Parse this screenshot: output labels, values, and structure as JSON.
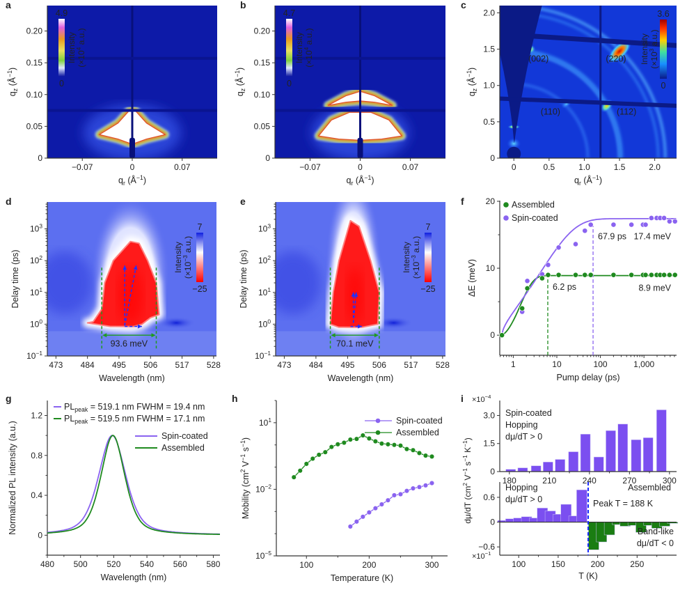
{
  "chart_data": [
    {
      "panel": "a",
      "type": "heatmap",
      "xlabel": "q_{r} (Å^{−1})",
      "ylabel": "q_{z} (Å^{−1})",
      "xlim": [
        -0.119,
        0.119
      ],
      "ylim": [
        0,
        0.24
      ],
      "xticks": [
        -0.07,
        0,
        0.07
      ],
      "xtick_labels": [
        "−0.07",
        "0",
        "0.07"
      ],
      "yticks": [
        0,
        0.05,
        0.1,
        0.15,
        0.2
      ],
      "ytick_labels": [
        "0",
        "0.05",
        "0.10",
        "0.15",
        "0.20"
      ],
      "colorbar": {
        "max": "4.9",
        "min": "0",
        "label1": "Intensity",
        "label2": "(×10^{4} a.u.)",
        "scale": "white-magenta-orange-yellow-green-blue"
      }
    },
    {
      "panel": "b",
      "type": "heatmap",
      "xlabel": "q_{r} (Å^{−1})",
      "ylabel": "q_{z} (Å^{−1})",
      "xlim": [
        -0.119,
        0.119
      ],
      "ylim": [
        0,
        0.24
      ],
      "xticks": [
        -0.07,
        0,
        0.07
      ],
      "xtick_labels": [
        "−0.07",
        "0",
        "0.07"
      ],
      "yticks": [
        0,
        0.05,
        0.1,
        0.15,
        0.2
      ],
      "ytick_labels": [
        "0",
        "0.05",
        "0.10",
        "0.15",
        "0.20"
      ],
      "colorbar": {
        "max": "4.7",
        "min": "0",
        "label1": "Intensity",
        "label2": "(×10^{4} a.u.)",
        "scale": "white-magenta-orange-yellow-green-blue"
      }
    },
    {
      "panel": "c",
      "type": "heatmap",
      "xlabel": "q_{r} (Å^{−1})",
      "ylabel": "q_{z} (Å^{−1})",
      "xlim": [
        -0.2,
        2.31
      ],
      "ylim": [
        0,
        2.1
      ],
      "xticks": [
        0,
        0.5,
        1.0,
        1.5,
        2.0
      ],
      "xtick_labels": [
        "0",
        "0.5",
        "1.0",
        "1.5",
        "2.0"
      ],
      "yticks": [
        0,
        0.5,
        1.0,
        1.5,
        2.0
      ],
      "ytick_labels": [
        "0",
        "0.5",
        "1.0",
        "1.5",
        "2.0"
      ],
      "colorbar": {
        "max": "3.6",
        "min": "0",
        "label1": "Intensity",
        "label2": "(×10^{3} a.u.)",
        "scale": "jet"
      },
      "annotations": [
        {
          "text": "(002)",
          "at": [
            0.35,
            1.33
          ]
        },
        {
          "text": "(220)",
          "at": [
            1.45,
            1.33
          ]
        },
        {
          "text": "(110)",
          "at": [
            0.52,
            0.6
          ]
        },
        {
          "text": "(112)",
          "at": [
            1.6,
            0.6
          ]
        }
      ]
    },
    {
      "panel": "d",
      "type": "heatmap",
      "xlabel": "Wavelength (nm)",
      "ylabel": "Delay time (ps)",
      "xlim": [
        470,
        529
      ],
      "ylim": [
        0.1,
        7000
      ],
      "yscale": "log",
      "xticks": [
        473,
        484,
        495,
        506,
        517,
        528
      ],
      "yticks": [
        0.1,
        1,
        10,
        100,
        1000
      ],
      "ytick_labels": [
        "10^{−1}",
        "10^{0}",
        "10^{1}",
        "10^{2}",
        "10^{3}"
      ],
      "colorbar": {
        "max": "7",
        "min": "−25",
        "label1": "Intensity",
        "label2": "(×10^{−3} a.u.)",
        "scale": "blue-white-red"
      },
      "bracket": {
        "from_nm": 489,
        "to_nm": 508,
        "label": "93.6 meV"
      }
    },
    {
      "panel": "e",
      "type": "heatmap",
      "xlabel": "Wavelength (nm)",
      "ylabel": "Delay time (ps)",
      "xlim": [
        470,
        529
      ],
      "ylim": [
        0.1,
        7000
      ],
      "yscale": "log",
      "xticks": [
        473,
        484,
        495,
        506,
        517,
        528
      ],
      "yticks": [
        0.1,
        1,
        10,
        100,
        1000
      ],
      "ytick_labels": [
        "10^{−1}",
        "10^{0}",
        "10^{1}",
        "10^{2}",
        "10^{3}"
      ],
      "colorbar": {
        "max": "7",
        "min": "−25",
        "label1": "Intensity",
        "label2": "(×10^{−3} a.u.)",
        "scale": "blue-white-red"
      },
      "bracket": {
        "from_nm": 489,
        "to_nm": 506,
        "label": "70.1 meV"
      }
    },
    {
      "panel": "f",
      "type": "scatter",
      "xlabel": "Pump delay (ps)",
      "ylabel": "ΔE (meV)",
      "xscale": "log",
      "xlim": [
        0.49,
        5600
      ],
      "ylim": [
        -3,
        20.1
      ],
      "xticks": [
        1,
        10,
        100,
        1000
      ],
      "xtick_labels": [
        "1",
        "10",
        "100",
        "1,000"
      ],
      "yticks": [
        0,
        10,
        20
      ],
      "ytick_labels": [
        "0",
        "10",
        "20"
      ],
      "series": [
        {
          "name": "Assembled",
          "color": "#1f8a1f",
          "x": [
            0.55,
            1.6,
            2.1,
            4.6,
            6.3,
            11,
            27,
            44,
            60,
            200,
            515,
            950,
            1090,
            1480,
            1960,
            2350,
            2900,
            3860,
            5150
          ],
          "y": [
            0,
            4.0,
            7.0,
            8.5,
            9.0,
            9.0,
            9.0,
            9.0,
            9.0,
            9.0,
            9.0,
            9.0,
            9.0,
            9.0,
            9.0,
            9.0,
            9.0,
            9.0,
            9.0
          ],
          "fit": {
            "plateau": 8.9,
            "tau": 1.2,
            "beta": 1.3
          },
          "marker_line": {
            "x": 6.2,
            "label": "6.2 ps"
          },
          "plateau_label": "8.9 meV"
        },
        {
          "name": "Spin-coated",
          "color": "#8a63f0",
          "x": [
            0.55,
            1.6,
            2.1,
            4.6,
            6.3,
            11,
            27,
            44,
            60,
            200,
            515,
            950,
            1090,
            1480,
            1960,
            2350,
            2900,
            3860,
            5150
          ],
          "y": [
            0,
            3.5,
            8.1,
            9.1,
            10.5,
            13.1,
            13.6,
            15.6,
            16.5,
            16.5,
            16.5,
            16.5,
            16.5,
            17.5,
            17.5,
            17.5,
            17.5,
            17.0,
            17.0
          ],
          "fit": {
            "plateau": 17.4,
            "tau": 5.6,
            "beta": 0.6
          },
          "marker_line": {
            "x": 67.9,
            "label": "67.9 ps"
          },
          "plateau_label": "17.4 meV"
        }
      ],
      "legend": "top-left"
    },
    {
      "panel": "g",
      "type": "line",
      "xlabel": "Wavelength (nm)",
      "ylabel": "Normalized PL intensity (a.u.)",
      "xlim": [
        480,
        584
      ],
      "ylim": [
        -0.2,
        1.35
      ],
      "xticks": [
        480,
        500,
        520,
        540,
        560,
        580
      ],
      "yticks": [
        0,
        0.4,
        0.8,
        1.2
      ],
      "ytick_labels": [
        "0",
        "0.4",
        "0.8",
        "1.2"
      ],
      "series": [
        {
          "name": "Spin-coated",
          "color": "#8a63f0",
          "peak_nm": 519.1,
          "fwhm_nm": 19.4,
          "annotation": "PL_{peak} = 519.1 nm FWHM = 19.4 nm"
        },
        {
          "name": "Assembled",
          "color": "#1f8a1f",
          "peak_nm": 519.5,
          "fwhm_nm": 17.1,
          "annotation": "PL_{peak} = 519.5 nm FWHM = 17.1 nm"
        }
      ],
      "legend": "right"
    },
    {
      "panel": "h",
      "type": "line",
      "xlabel": "Temperature (K)",
      "ylabel": "Mobility (cm^{2} V^{−1} s^{−1})",
      "yscale": "log",
      "xlim": [
        52,
        325
      ],
      "ylim": [
        1e-05,
        100
      ],
      "xticks": [
        100,
        200,
        300
      ],
      "yticks": [
        1e-05,
        0.01,
        10
      ],
      "ytick_labels": [
        "10^{−5}",
        "10^{−2}",
        "10^{1}"
      ],
      "series": [
        {
          "name": "Spin-coated",
          "color": "#8a63f0",
          "x": [
            170,
            180,
            190,
            200,
            210,
            220,
            230,
            240,
            250,
            260,
            270,
            280,
            290,
            300
          ],
          "y": [
            0.00021,
            0.00035,
            0.00058,
            0.00091,
            0.0014,
            0.0021,
            0.0032,
            0.0054,
            0.006,
            0.0085,
            0.011,
            0.0126,
            0.015,
            0.019
          ]
        },
        {
          "name": "Assembled",
          "color": "#1f8a1f",
          "x": [
            80,
            90,
            100,
            110,
            120,
            130,
            140,
            150,
            160,
            170,
            180,
            190,
            200,
            210,
            220,
            230,
            240,
            250,
            260,
            270,
            280,
            290,
            300
          ],
          "y": [
            0.035,
            0.069,
            0.14,
            0.24,
            0.36,
            0.47,
            0.81,
            1.07,
            1.26,
            1.74,
            1.86,
            2.69,
            1.95,
            1.45,
            1.15,
            1.07,
            1.0,
            0.93,
            0.65,
            0.58,
            0.43,
            0.33,
            0.3
          ]
        }
      ],
      "legend": "top-right"
    },
    {
      "panel": "i",
      "type": "bar",
      "xlabel": "T (K)",
      "ylabel": "dμ/dT (cm^{2} V^{−1} s^{−1} K^{−1})",
      "subplots": [
        {
          "name": "Spin-coated",
          "xlim": [
            172.8,
            305.3
          ],
          "ylim": [
            0,
            3.8
          ],
          "multiplier": "×10^{−4}",
          "xticks": [
            180,
            210,
            240,
            270,
            300
          ],
          "yticks": [
            0,
            1.5,
            3.0
          ],
          "ytick_labels": [
            "0",
            "1.5",
            "3.0"
          ],
          "labels": [
            "Spin-coated",
            "Hopping",
            "dμ/dT > 0"
          ],
          "bars": [
            {
              "color": "#7b4ff0",
              "x": [
                181,
                190,
                200,
                209,
                218,
                228,
                237,
                247,
                256,
                265,
                275,
                284,
                294
              ],
              "y": [
                0.12,
                0.2,
                0.31,
                0.51,
                0.65,
                1.06,
                2.0,
                0.78,
                2.19,
                2.54,
                1.7,
                1.81,
                3.3
              ]
            }
          ]
        },
        {
          "name": "Assembled",
          "xlim": [
            76,
            300
          ],
          "ylim": [
            -0.8,
            0.97
          ],
          "multiplier": "×10^{−1}",
          "xticks": [
            100,
            150,
            200,
            250
          ],
          "yticks": [
            -0.6,
            0,
            0.6
          ],
          "ytick_labels": [
            "−0.6",
            "0",
            "0.6"
          ],
          "labels": [
            "Hopping",
            "dμ/dT > 0",
            "Assembled",
            "Peak T = 188 K",
            "Band-like",
            "dμ/dT < 0"
          ],
          "peak_T": 188,
          "bars": [
            {
              "color": "#7b4ff0",
              "x": [
                80,
                90,
                100,
                110,
                120,
                130,
                140,
                150,
                160,
                170,
                180
              ],
              "y": [
                0.04,
                0.08,
                0.1,
                0.13,
                0.1,
                0.34,
                0.27,
                0.19,
                0.43,
                0.15,
                0.78
              ]
            },
            {
              "color": "#1a7d12",
              "x": [
                195,
                205,
                215,
                225,
                235,
                245,
                255,
                265,
                275,
                285,
                295
              ],
              "y": [
                -0.67,
                -0.48,
                -0.31,
                -0.06,
                -0.1,
                -0.08,
                -0.25,
                -0.08,
                -0.15,
                -0.1,
                -0.03
              ]
            }
          ]
        }
      ]
    }
  ]
}
